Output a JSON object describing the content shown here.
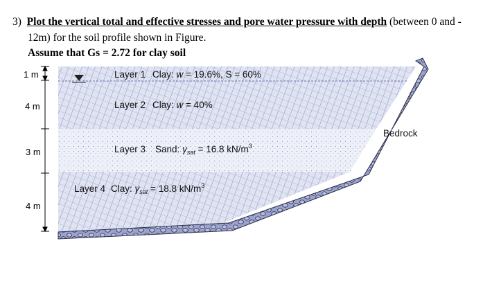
{
  "question": {
    "number": "3)",
    "title_bold_underlined": "Plot the vertical total and effective stresses and pore water pressure with depth",
    "title_rest": " (between 0 and -",
    "line2": "12m) for the soil profile shown in Figure.",
    "assumption": "Assume that Gs = 2.72 for clay soil"
  },
  "figure": {
    "depths": [
      "1 m",
      "4 m",
      "3 m",
      "4 m"
    ],
    "layers": [
      {
        "name": "Layer 1",
        "desc_prefix": "Clay: ",
        "desc_var": "w",
        "desc_rest": " = 19.6%, S = 60%"
      },
      {
        "name": "Layer 2",
        "desc_prefix": "Clay: ",
        "desc_var": "w",
        "desc_rest": " = 40%"
      },
      {
        "name": "Layer 3",
        "desc_prefix": "Sand: ",
        "desc_var": "γ",
        "desc_sub": "sat",
        "desc_rest": " = 16.8 kN/m",
        "desc_sup": "3"
      },
      {
        "name": "Layer 4",
        "desc_prefix": "Clay: ",
        "desc_var": "γ",
        "desc_sub": "sat",
        "desc_rest": " = 18.8 kN/m",
        "desc_sup": "3"
      }
    ],
    "bedrock_label": "Bedrock",
    "colors": {
      "clay_fill": "#dfe3f2",
      "hatch": "#7e86b2",
      "sand_fill": "#eef0f9",
      "rock_fill": "#9aa2cf",
      "rock_stroke": "#2c2f45"
    }
  }
}
